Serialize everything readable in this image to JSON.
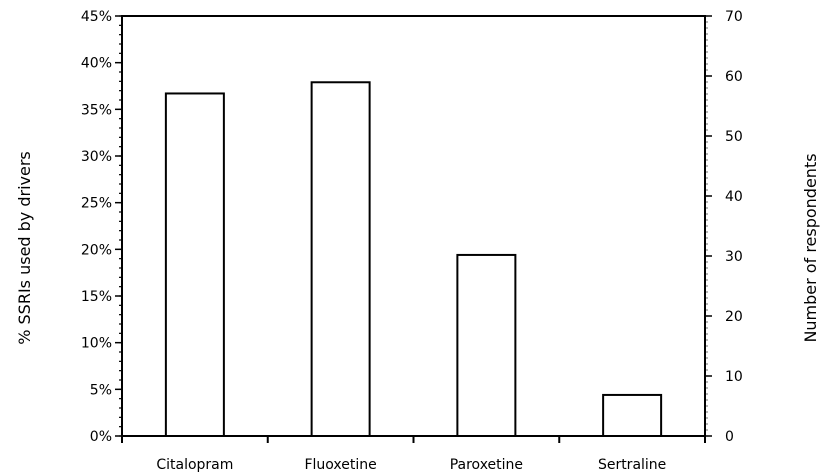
{
  "chart_data": {
    "type": "bar",
    "categories": [
      "Citalopram",
      "Fluoxetine",
      "Paroxetine",
      "Sertraline"
    ],
    "series": [
      {
        "values": [
          0.367,
          0.379,
          0.194,
          0.044
        ]
      }
    ],
    "ylabel": "% SSRIs used by drivers",
    "ylabel_right": "Number of respondents",
    "ylim": [
      0,
      0.45
    ],
    "ylim_right": [
      0,
      70
    ],
    "yticks": [
      "0%",
      "5%",
      "10%",
      "15%",
      "20%",
      "25%",
      "30%",
      "35%",
      "40%",
      "45%"
    ],
    "yticks_right": [
      "0",
      "10",
      "20",
      "30",
      "40",
      "50",
      "60",
      "70"
    ],
    "grid": false,
    "bar_fill": "#ffffff",
    "bar_stroke": "#000000"
  }
}
